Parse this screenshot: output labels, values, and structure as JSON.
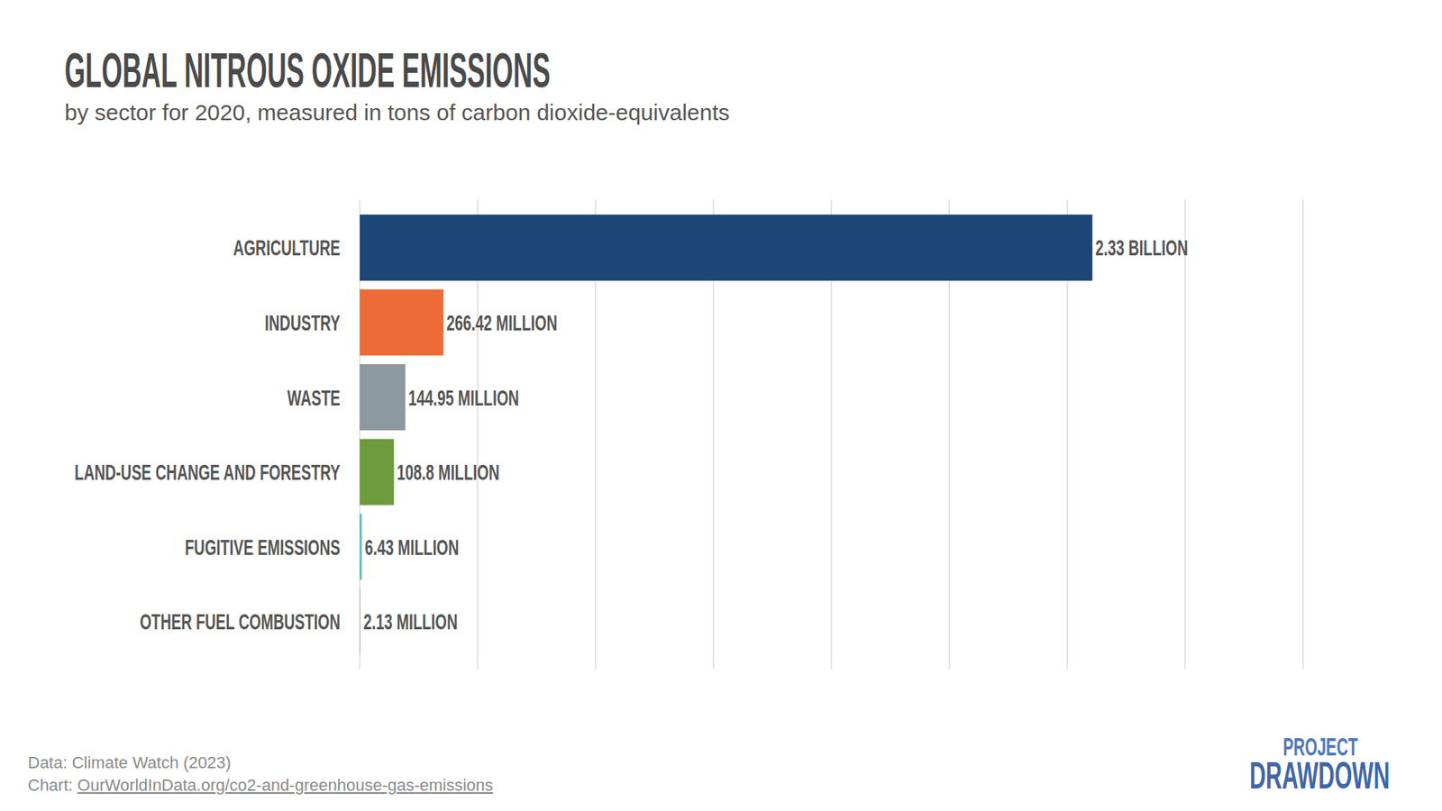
{
  "chart_data": {
    "type": "bar",
    "orientation": "horizontal",
    "title": "GLOBAL NITROUS OXIDE EMISSIONS",
    "subtitle": "by sector for 2020, measured in tons of carbon dioxide-equivalents",
    "categories": [
      "AGRICULTURE",
      "INDUSTRY",
      "WASTE",
      "LAND-USE CHANGE AND FORESTRY",
      "FUGITIVE EMISSIONS",
      "OTHER FUEL COMBUSTION"
    ],
    "values": [
      2330000000,
      266420000,
      144950000,
      108800000,
      6430000,
      2130000
    ],
    "value_labels": [
      "2.33 BILLION",
      "266.42 MILLION",
      "144.95 MILLION",
      "108.8 MILLION",
      "6.43 MILLION",
      "2.13 MILLION"
    ],
    "colors": [
      "#1c4676",
      "#ec6b36",
      "#8c99a1",
      "#6e9b3c",
      "#5bbcc4",
      "#b5b5b5"
    ],
    "xlim": [
      0,
      3000000000
    ],
    "xticks": [
      0,
      375000000,
      750000000,
      1125000000,
      1500000000,
      1875000000,
      2250000000,
      2625000000,
      3000000000
    ],
    "grid": true,
    "data_labels": true,
    "tick_labels": false,
    "source": "Data: Climate Watch (2023)",
    "credit_prefix": "Chart:",
    "credit_link": "OurWorldInData.org/co2-and-greenhouse-gas-emissions",
    "logo": [
      "PROJECT",
      "DRAWDOWN"
    ]
  }
}
